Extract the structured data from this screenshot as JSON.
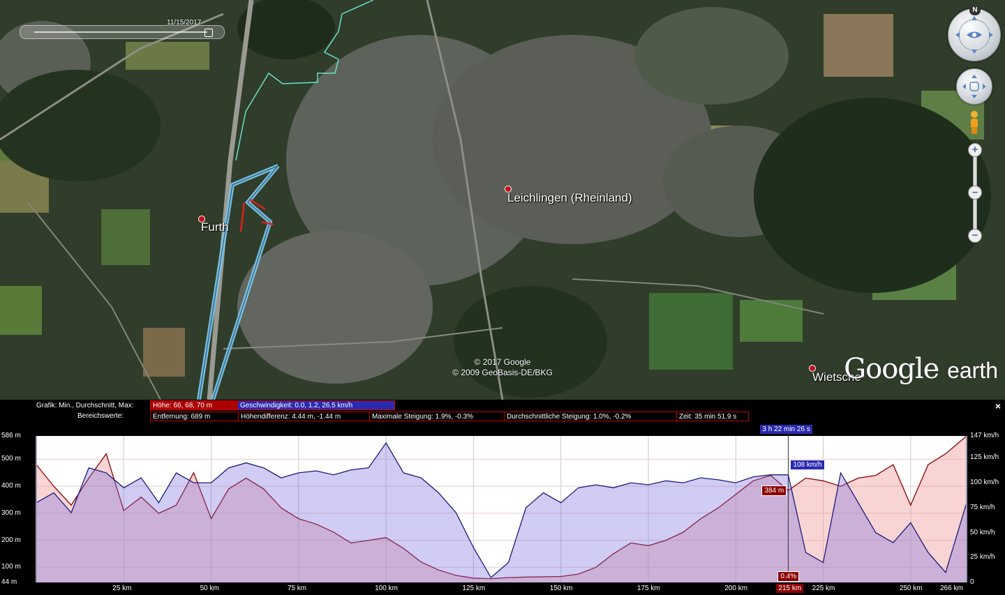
{
  "map": {
    "places": [
      {
        "name": "Furth"
      },
      {
        "name": "Leichlingen (Rheinland)"
      },
      {
        "name": "Wietsche"
      }
    ],
    "copyright": [
      "© 2017 Google",
      "© 2009 GeoBasis-DE/BKG"
    ],
    "logo": {
      "brand": "Google",
      "product": "earth"
    },
    "time_slider_date": "11/15/2017",
    "compass_north": "N",
    "zoom_in": "+",
    "zoom_out": "−",
    "colors": {
      "track": "#7fc8e8",
      "route": "#6fe0c8",
      "marker_red": "#c0101a"
    }
  },
  "panel": {
    "row1_label": "Grafik: Min., Durchschnitt, Max:",
    "row2_label": "Bereichswerte:",
    "elevation": "Höhe: 66, 68, 70 m",
    "speed": "Geschwindigkeit: 0.0, 1.2, 26.5 km/h",
    "distance": "Entfernung: 689 m",
    "elev_diff": "Höhendifferenz: 4.44 m, -1.44 m",
    "max_slope": "Maximale Steigung: 1.9%, -0.3%",
    "avg_slope": "Durchschnittliche Steigung: 1.0%, -0.2%",
    "time": "Zeit: 35 min 51.9 s",
    "close": "×"
  },
  "chart_data": {
    "type": "area",
    "x_unit": "km",
    "xlim": [
      0,
      266
    ],
    "x_ticks": [
      "25 km",
      "50 km",
      "75 km",
      "100 km",
      "125 km",
      "150 km",
      "175 km",
      "200 km",
      "215 km",
      "225 km",
      "250 km",
      "266 km"
    ],
    "y_left_ticks": [
      "586 m",
      "500 m",
      "400 m",
      "300 m",
      "200 m",
      "100 m",
      "44 m"
    ],
    "y_left_lim": [
      44,
      586
    ],
    "y_right_ticks": [
      "147 km/h",
      "125 km/h",
      "100 km/h",
      "75 km/h",
      "50 km/h",
      "25 km/h",
      "0"
    ],
    "y_right_lim": [
      0,
      147
    ],
    "cursor": {
      "x_km": 215,
      "elevation": "384 m",
      "speed": "108 km/h",
      "time": "3 h 22 min 26 s",
      "slope": "0.4%"
    },
    "series": [
      {
        "name": "Höhe",
        "color": "#8b0000",
        "x": [
          0,
          5,
          10,
          15,
          20,
          25,
          30,
          35,
          40,
          45,
          50,
          55,
          60,
          65,
          70,
          75,
          80,
          85,
          90,
          95,
          100,
          105,
          110,
          115,
          120,
          125,
          130,
          135,
          140,
          145,
          150,
          155,
          160,
          165,
          170,
          175,
          180,
          185,
          190,
          195,
          200,
          205,
          210,
          215,
          220,
          225,
          230,
          235,
          240,
          245,
          250,
          255,
          260,
          266
        ],
        "values": [
          480,
          400,
          330,
          430,
          520,
          310,
          360,
          300,
          330,
          450,
          280,
          390,
          430,
          390,
          320,
          280,
          260,
          230,
          190,
          200,
          210,
          170,
          120,
          90,
          70,
          60,
          58,
          62,
          64,
          65,
          66,
          75,
          100,
          150,
          190,
          180,
          200,
          230,
          280,
          320,
          370,
          420,
          440,
          384,
          430,
          420,
          400,
          430,
          440,
          480,
          330,
          480,
          520,
          586
        ]
      },
      {
        "name": "Geschwindigkeit",
        "color": "#1a1a7a",
        "x": [
          0,
          5,
          10,
          15,
          20,
          25,
          30,
          35,
          40,
          45,
          50,
          55,
          60,
          65,
          70,
          75,
          80,
          85,
          90,
          95,
          100,
          105,
          110,
          115,
          120,
          125,
          130,
          135,
          140,
          145,
          150,
          155,
          160,
          165,
          170,
          175,
          180,
          185,
          190,
          195,
          200,
          205,
          210,
          215,
          220,
          225,
          230,
          235,
          240,
          245,
          250,
          255,
          260,
          266
        ],
        "values": [
          80,
          90,
          70,
          115,
          110,
          95,
          105,
          80,
          110,
          100,
          100,
          115,
          120,
          115,
          105,
          110,
          112,
          108,
          113,
          115,
          140,
          110,
          105,
          90,
          70,
          35,
          5,
          20,
          75,
          90,
          80,
          95,
          98,
          95,
          100,
          98,
          102,
          100,
          105,
          103,
          100,
          106,
          108,
          108,
          30,
          20,
          110,
          80,
          50,
          40,
          60,
          30,
          10,
          80
        ]
      }
    ]
  }
}
